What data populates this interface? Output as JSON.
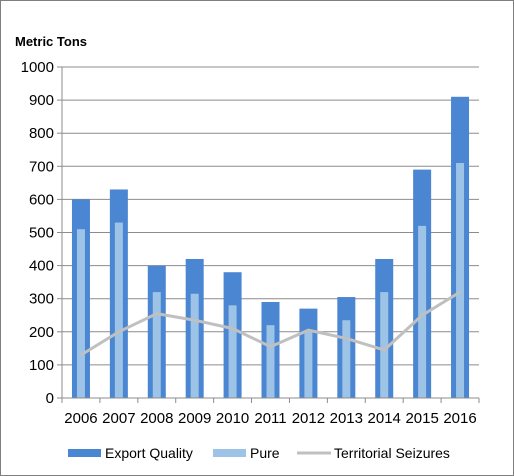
{
  "chart_data": {
    "type": "bar",
    "ylabel": "Metric Tons",
    "categories": [
      "2006",
      "2007",
      "2008",
      "2009",
      "2010",
      "2011",
      "2012",
      "2013",
      "2014",
      "2015",
      "2016"
    ],
    "series": [
      {
        "name": "Export Quality",
        "type": "bar",
        "color": "#4a86d1",
        "values": [
          600,
          630,
          400,
          420,
          380,
          290,
          270,
          305,
          420,
          690,
          910
        ]
      },
      {
        "name": "Pure",
        "type": "bar",
        "color": "#9dc3e6",
        "values": [
          510,
          530,
          320,
          315,
          280,
          220,
          205,
          235,
          320,
          520,
          710
        ]
      },
      {
        "name": "Territorial Seizures",
        "type": "line",
        "color": "#c0c0c0",
        "values": [
          130,
          200,
          255,
          235,
          210,
          155,
          205,
          180,
          145,
          250,
          320
        ]
      }
    ],
    "ylim": [
      0,
      1000
    ],
    "yticks": [
      "0",
      "100",
      "200",
      "300",
      "400",
      "500",
      "600",
      "700",
      "800",
      "900",
      "1000"
    ],
    "grid": true,
    "legend_position": "bottom"
  }
}
